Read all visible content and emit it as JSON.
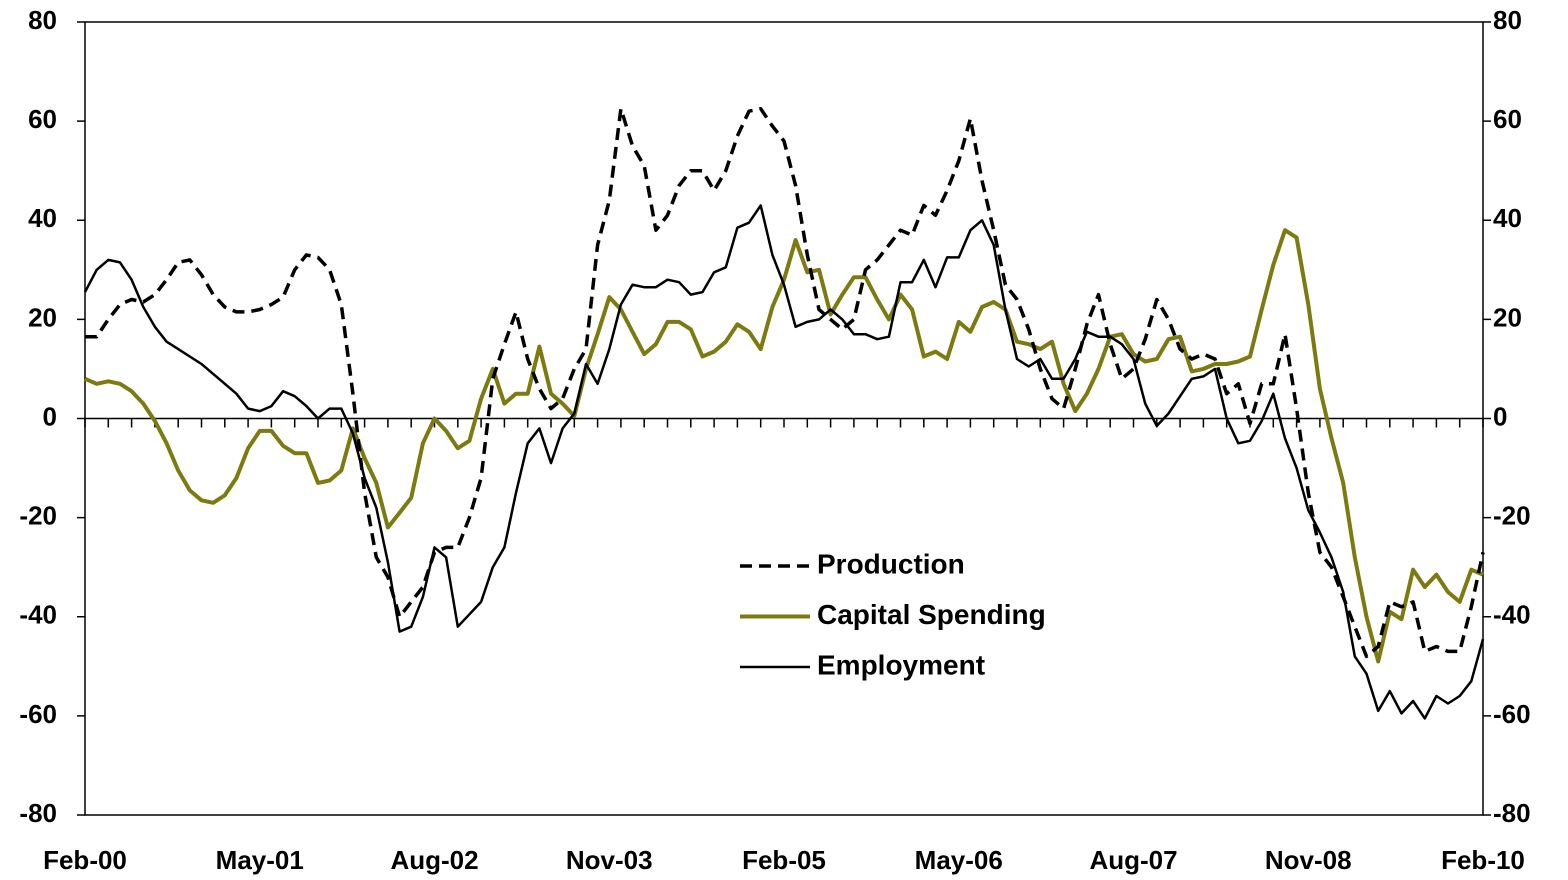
{
  "chart_data": {
    "type": "line",
    "categories": [
      "Feb-00",
      null,
      null,
      null,
      null,
      null,
      null,
      null,
      null,
      null,
      null,
      null,
      null,
      null,
      null,
      "May-01",
      null,
      null,
      null,
      null,
      null,
      null,
      null,
      null,
      null,
      null,
      null,
      null,
      null,
      null,
      "Aug-02",
      null,
      null,
      null,
      null,
      null,
      null,
      null,
      null,
      null,
      null,
      null,
      null,
      null,
      null,
      "Nov-03",
      null,
      null,
      null,
      null,
      null,
      null,
      null,
      null,
      null,
      null,
      null,
      null,
      null,
      null,
      "Feb-05",
      null,
      null,
      null,
      null,
      null,
      null,
      null,
      null,
      null,
      null,
      null,
      null,
      null,
      null,
      "May-06",
      null,
      null,
      null,
      null,
      null,
      null,
      null,
      null,
      null,
      null,
      null,
      null,
      null,
      null,
      "Aug-07",
      null,
      null,
      null,
      null,
      null,
      null,
      null,
      null,
      null,
      null,
      null,
      null,
      null,
      null,
      "Nov-08",
      null,
      null,
      null,
      null,
      null,
      null,
      null,
      null,
      null,
      null,
      null,
      null,
      null,
      null,
      "Feb-10"
    ],
    "series": [
      {
        "name": "Production",
        "color": "#000000",
        "dash": true,
        "values": [
          16.5,
          16.5,
          20,
          23,
          24,
          23.5,
          25,
          28,
          31.5,
          32,
          29,
          25,
          22.5,
          21.5,
          21.5,
          22,
          23,
          24.5,
          30,
          33,
          32.5,
          30,
          23,
          5,
          -15,
          -28,
          -32,
          -40,
          -37,
          -34,
          -27,
          -26,
          -26,
          -20,
          -12,
          8,
          15,
          21.5,
          12,
          6,
          2,
          4,
          10,
          14,
          35,
          44,
          62.5,
          55,
          51,
          38,
          41,
          47,
          50,
          50,
          46,
          50,
          57,
          62,
          62.5,
          59,
          56,
          47,
          33,
          22,
          20,
          18,
          20,
          30,
          32,
          35,
          38,
          37,
          43,
          41,
          46,
          52,
          60.5,
          48,
          38,
          27,
          24,
          18,
          10,
          4,
          2,
          10,
          19,
          25,
          15,
          8,
          10,
          16,
          24,
          20,
          14,
          12,
          13,
          12,
          5,
          7,
          -1,
          7,
          7,
          17,
          2,
          -15,
          -27,
          -30,
          -36,
          -42,
          -48,
          -46,
          -37,
          -38,
          -37,
          -47,
          -46,
          -47,
          -47,
          -38,
          -27
        ]
      },
      {
        "name": "Capital Spending",
        "color": "#7d7a10",
        "dash": false,
        "values": [
          8,
          7,
          7.5,
          7,
          5.5,
          3,
          -0.5,
          -5,
          -10.5,
          -14.5,
          -16.5,
          -17,
          -15.5,
          -12,
          -6,
          -2.5,
          -2.5,
          -5.5,
          -7,
          -7,
          -13,
          -12.5,
          -10.5,
          -2,
          -8,
          -13,
          -22,
          -19,
          -16,
          -5,
          0,
          -2.5,
          -6,
          -4.5,
          4,
          10,
          3,
          5,
          5,
          14.5,
          5,
          3,
          0.5,
          10,
          17,
          24.5,
          22,
          17.5,
          13,
          15,
          19.5,
          19.5,
          18,
          12.5,
          13.5,
          15.5,
          19,
          17.5,
          14,
          22.5,
          28,
          36,
          29.5,
          30,
          21,
          25,
          28.5,
          28.5,
          24,
          20,
          25,
          22,
          12.5,
          13.5,
          12,
          19.5,
          17.5,
          22.5,
          23.5,
          22,
          15.5,
          15,
          14,
          15.5,
          7,
          1.5,
          5,
          10,
          16.5,
          17,
          13,
          11.5,
          12,
          16,
          16.5,
          9.5,
          10,
          11,
          11,
          11.5,
          12.5,
          22,
          31,
          38,
          36.5,
          23,
          6,
          -4,
          -13,
          -28,
          -40,
          -49,
          -39,
          -40.5,
          -30.5,
          -34,
          -31.5,
          -35,
          -37,
          -30.5,
          -31.5
        ]
      },
      {
        "name": "Employment",
        "color": "#000000",
        "dash": false,
        "values": [
          25.5,
          30,
          32,
          31.5,
          28,
          22.5,
          18.5,
          15.5,
          14,
          12.5,
          11,
          9,
          7,
          5,
          2,
          1.5,
          2.5,
          5.5,
          4.5,
          2.5,
          0,
          2,
          2,
          -3,
          -12,
          -18,
          -29,
          -43,
          -42,
          -36,
          -26,
          -28,
          -42,
          -39.5,
          -37,
          -30,
          -26,
          -15,
          -5,
          -2,
          -9,
          -2,
          1,
          11,
          7,
          14,
          23,
          27,
          26.5,
          26.5,
          28,
          27.5,
          25,
          25.5,
          29.5,
          30.5,
          38.5,
          39.5,
          43,
          33,
          27,
          18.5,
          19.5,
          20,
          22,
          20,
          17,
          17,
          16,
          16.5,
          27.5,
          27.5,
          32,
          26.5,
          32.5,
          32.5,
          38,
          40,
          35,
          22,
          12,
          10.5,
          12,
          8,
          8,
          12,
          17.5,
          16.5,
          16.5,
          15,
          12,
          3,
          -1.5,
          1,
          4.5,
          8,
          8.5,
          10,
          0,
          -5,
          -4.5,
          -0.5,
          5,
          -4,
          -10,
          -18.5,
          -23,
          -28,
          -35,
          -48,
          -51.5,
          -59,
          -55,
          -59.5,
          -57,
          -60.5,
          -56,
          -57.5,
          -56,
          -53,
          -44.5
        ]
      }
    ],
    "ylim": [
      -80,
      80
    ],
    "yticks": [
      -80,
      -60,
      -40,
      -20,
      0,
      20,
      40,
      60,
      80
    ],
    "y2lim": [
      -80,
      80
    ],
    "y2ticks": [
      -80,
      -60,
      -40,
      -20,
      0,
      20,
      40,
      60,
      80
    ],
    "grid": false,
    "legend": "center"
  }
}
